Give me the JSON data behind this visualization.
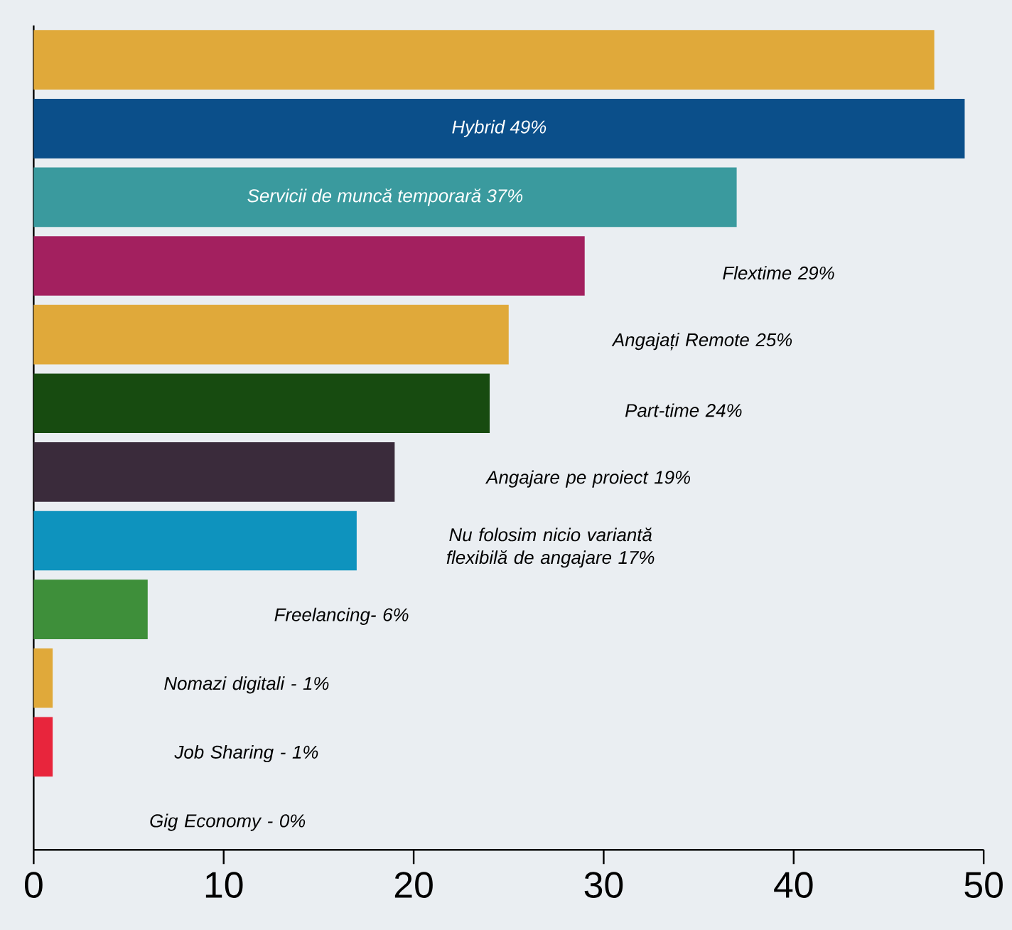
{
  "chart_data": {
    "type": "bar",
    "orientation": "horizontal",
    "categories": [
      null,
      "Hybrid 49%",
      "Servicii de muncă temporară 37%",
      "Flextime 29%",
      "Angajați Remote 25%",
      "Part-time 24%",
      "Angajare pe proiect 19%",
      "Nu folosim nicio variantă flexibilă de angajare 17%",
      "Freelancing- 6%",
      "Nomazi digitali - 1%",
      "Job Sharing - 1%",
      "Gig Economy - 0%"
    ],
    "values": [
      47.4,
      49,
      37,
      29,
      25,
      24,
      19,
      17,
      6,
      1,
      1,
      0
    ],
    "colors": [
      "#e0a93a",
      "#0b4f8a",
      "#3a9a9e",
      "#a3205f",
      "#e0a93a",
      "#174b10",
      "#3a2b3b",
      "#0e93be",
      "#3e8f3a",
      "#e0a93a",
      "#e8253c",
      "#e8253c"
    ],
    "xlim": [
      0,
      50
    ],
    "xticks": [
      0,
      10,
      20,
      30,
      40,
      50
    ],
    "grid": false
  }
}
